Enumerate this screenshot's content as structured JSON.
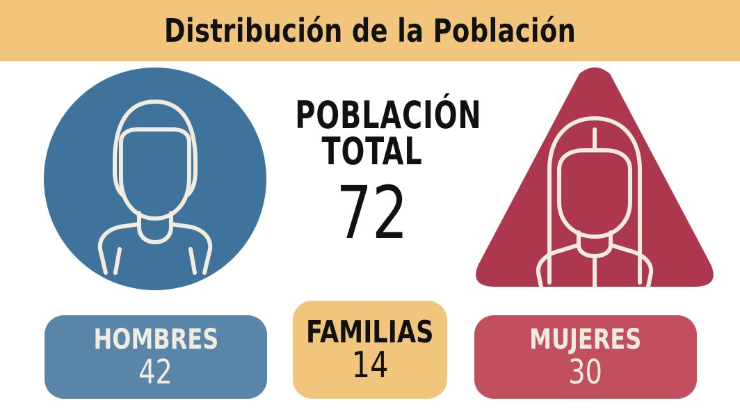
{
  "header": {
    "title": "Distribución de la Población"
  },
  "total": {
    "label_line1": "POBLACIÓN",
    "label_line2": "TOTAL",
    "value": "72"
  },
  "cards": {
    "men": {
      "label": "HOMBRES",
      "value": "42"
    },
    "families": {
      "label": "FAMILIAS",
      "value": "14"
    },
    "women": {
      "label": "MUJERES",
      "value": "30"
    }
  },
  "icons": {
    "men": "male-person-icon",
    "women": "female-person-icon"
  },
  "colors": {
    "banner": "#f2c57c",
    "men_circle": "#3f739c",
    "men_card": "#5985a8",
    "women_triangle": "#ad374d",
    "women_card": "#c24f5e",
    "line_art": "#f1ece0"
  }
}
